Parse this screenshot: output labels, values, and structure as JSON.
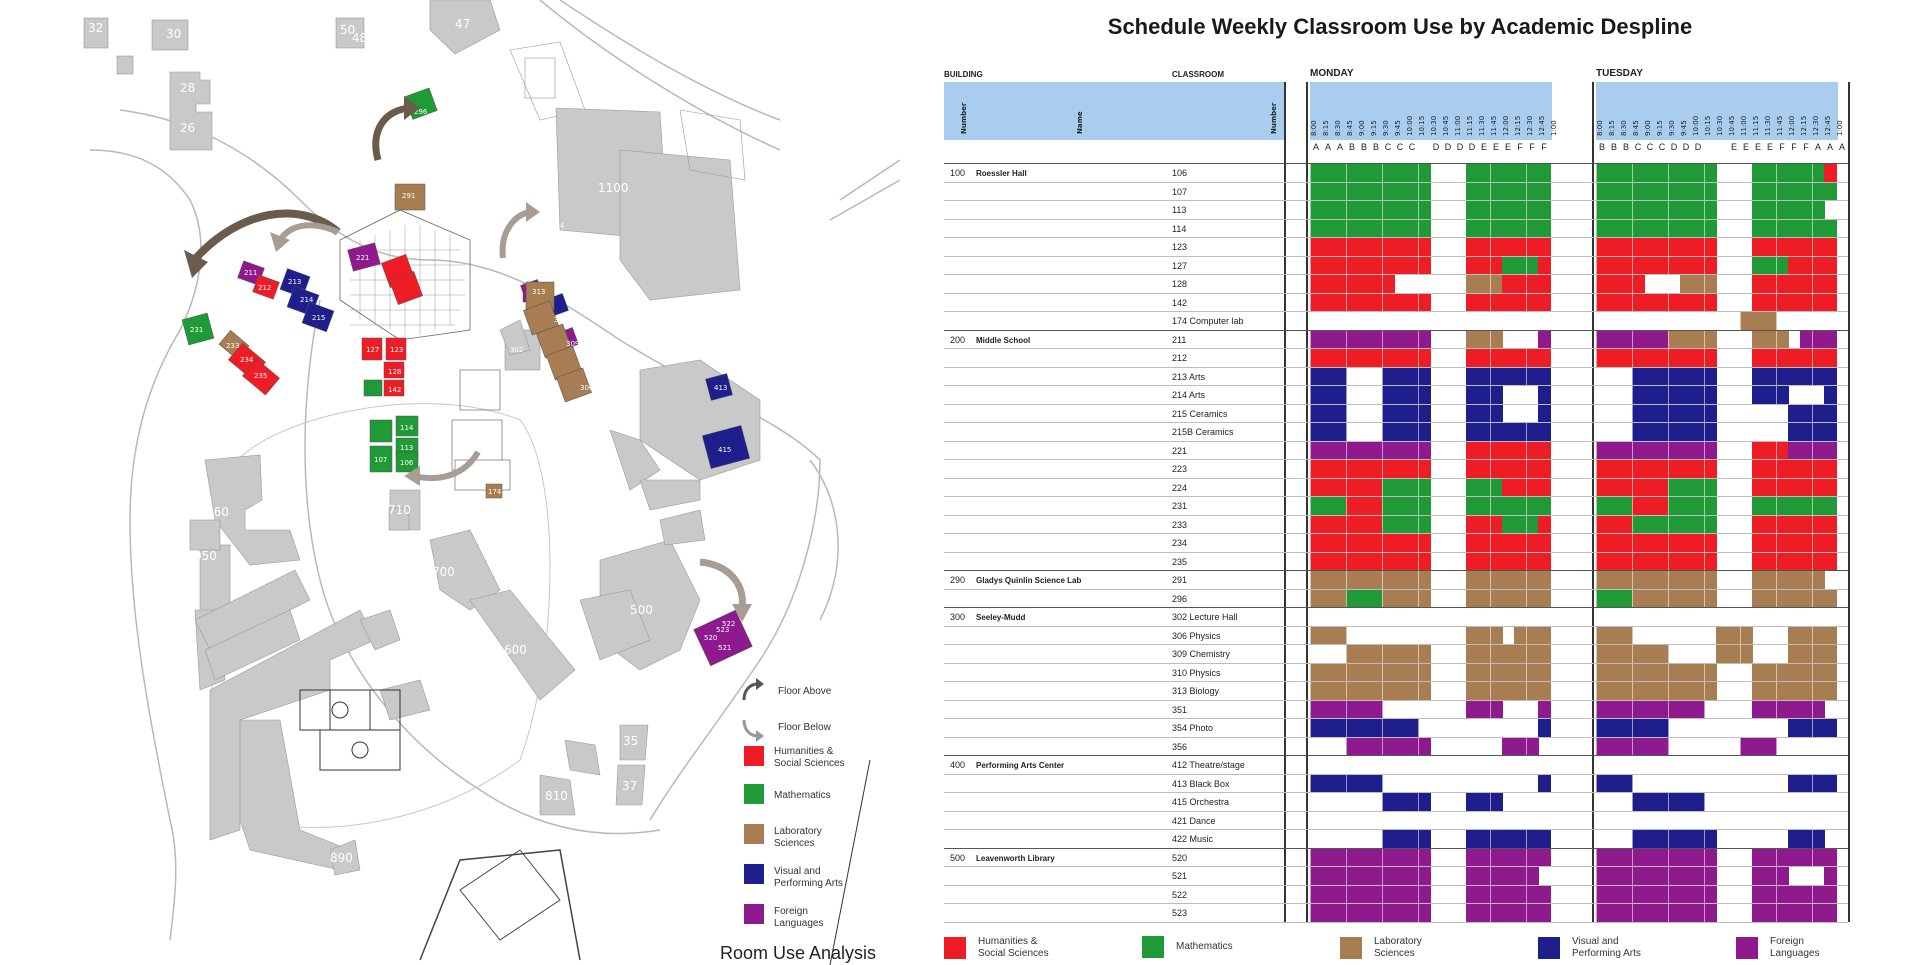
{
  "colors": {
    "H": "#ee1c25",
    "M": "#1f9a36",
    "L": "#a87d51",
    "V": "#1e1e8c",
    "F": "#8e1a8e",
    "header_band": "#a9cdee"
  },
  "map": {
    "caption": "Room Use Analysis",
    "buildings": [
      "32",
      "30",
      "28",
      "26",
      "50",
      "48",
      "47",
      "1100",
      "296",
      "291",
      "221",
      "211",
      "212",
      "213",
      "214",
      "215",
      "231",
      "233",
      "234",
      "235",
      "156",
      "154",
      "151",
      "313",
      "310",
      "309",
      "306",
      "302",
      "127",
      "123",
      "128",
      "142",
      "114",
      "113",
      "107",
      "106",
      "174",
      "413",
      "415",
      "700",
      "710",
      "960",
      "950",
      "500",
      "520",
      "523",
      "521",
      "522",
      "600",
      "890",
      "810",
      "35",
      "37"
    ],
    "legend": {
      "floor_above": "Floor Above",
      "floor_below": "Floor Below",
      "items": [
        {
          "key": "H",
          "label": "Humanities &\nSocial Sciences"
        },
        {
          "key": "M",
          "label": "Mathematics"
        },
        {
          "key": "L",
          "label": "Laboratory\nSciences"
        },
        {
          "key": "V",
          "label": "Visual and\nPerforming Arts"
        },
        {
          "key": "F",
          "label": "Foreign\nLanguages"
        }
      ]
    }
  },
  "schedule": {
    "title": "Schedule Weekly Classroom Use by Academic Despline",
    "header": {
      "building": "BUILDING",
      "classroom": "CLASSROOM",
      "number": "Number",
      "name": "Name",
      "cnumber": "Number"
    },
    "days": [
      {
        "name": "MONDAY",
        "blocks": [
          "A",
          "A",
          "A",
          "B",
          "B",
          "B",
          "C",
          "C",
          "C",
          "",
          "D",
          "D",
          "D",
          "D",
          "E",
          "E",
          "E",
          "F",
          "F",
          "F"
        ]
      },
      {
        "name": "TUESDAY",
        "blocks": [
          "B",
          "B",
          "B",
          "C",
          "C",
          "C",
          "D",
          "D",
          "D",
          "",
          "",
          "E",
          "E",
          "E",
          "E",
          "F",
          "F",
          "F",
          "A",
          "A",
          "A"
        ]
      }
    ],
    "times": [
      "8:00",
      "8:15",
      "8:30",
      "8:45",
      "9:00",
      "9:15",
      "9:30",
      "9:45",
      "10:00",
      "10:15",
      "10:30",
      "10:45",
      "11:00",
      "11:15",
      "11:30",
      "11:45",
      "12:00",
      "12:15",
      "12:30",
      "12:45",
      "1:00"
    ],
    "rows": [
      {
        "bnum": "100",
        "bname": "Roessler Hall",
        "room": "106",
        "mon": "MMMMMMMMMM...MMMMMMMHHH",
        "tue": "MMMMMMMMMM...MMMMMMHHH"
      },
      {
        "room": "107",
        "mon": "MMMMMMMMMM...MMMMMMMMMM",
        "tue": "MMMMMMMMMM...MMMMMMMMM"
      },
      {
        "room": "113",
        "mon": "MMMMMMMMMM...MMMMMMM...",
        "tue": "MMMMMMMMMM...MMMMMM...M"
      },
      {
        "room": "114",
        "mon": "MMMMMMMMMM...MMMMMMMMMM",
        "tue": "MMMMMMMMMM...MMMMMMMMM"
      },
      {
        "room": "123",
        "mon": "HHHHHHHHHH...HHHHHHHHHH",
        "tue": "HHHHHHHHHH...HHHHHHHHH"
      },
      {
        "room": "127",
        "mon": "HHHHHHHHHH...HHHMMMHHHH",
        "tue": "HHHHHHHHHH...MMMHHHHHH"
      },
      {
        "room": "128",
        "mon": "HHHHHHH......LLLHHHHHHH",
        "tue": "HHHH...LLL...HHHHHHHHH"
      },
      {
        "room": "142",
        "mon": "HHHHHHHHHH...HHHHHHHHHH",
        "tue": "HHHHHHHHHH...HHHHHHHHH"
      },
      {
        "room": "174 Computer lab",
        "mon": "........................",
        "tue": "............LLL........"
      },
      {
        "bnum": "200",
        "bname": "Middle School",
        "room": "211",
        "mon": "FFFFFFFFFF...LLL...FFF",
        "tue": "FFFFFFLLLL...LLL.FFFFFF"
      },
      {
        "room": "212",
        "mon": "HHHHHHHHHH...HHHHHHHHHH",
        "tue": "HHHHHHHHHH...HHHHHHHHH"
      },
      {
        "room": "213 Arts",
        "mon": "VVV...VVVV...VVVVVVVVVV",
        "tue": "...VVVVVVV...VVVVVVVVV"
      },
      {
        "room": "214 Arts",
        "mon": "VVV...VVVV...VVV...VVV",
        "tue": "...VVVVVVV...VVV...VVV"
      },
      {
        "room": "215 Ceramics",
        "mon": "VVV...VVVV...VVV...VVV",
        "tue": "...VVVVVVV......VVVVVV"
      },
      {
        "room": "215B Ceramics",
        "mon": "VVV...VVVV...VVVVVVVVVV",
        "tue": "...VVVVVVV......VVVVVV"
      },
      {
        "room": "221",
        "mon": "FFFFFFFFFF...HHHHHHHHHH",
        "tue": "FFFFFFFFFF...HHHFFFFFF"
      },
      {
        "room": "223",
        "mon": "HHHHHHHHHH...HHHHHHHHHH",
        "tue": "HHHHHHHHHH...HHHHHHHHH"
      },
      {
        "room": "224",
        "mon": "HHHHHHMMMM...MMMHHHHHHH",
        "tue": "HHHHHHMMMM...HHHHHHHHH"
      },
      {
        "room": "231",
        "mon": "MMMHHHMMMM...MMMMMMMMMM",
        "tue": "MMMHHHMMMM...MMMMMMMMM"
      },
      {
        "room": "233",
        "mon": "HHHHHHMMMM...HHHMMMHHHH",
        "tue": "HHHMMMMMMM...HHHHHHHHH"
      },
      {
        "room": "234",
        "mon": "HHHHHHHHHH...HHHHHHHHHH",
        "tue": "HHHHHHHHHH...HHHHHHHHH"
      },
      {
        "room": "235",
        "mon": "HHHHHHHHHH...HHHHHHHHHH",
        "tue": "HHHHHHHHHH...HHHHHHHHH"
      },
      {
        "bnum": "290",
        "bname": "Gladys Quinlin Science Lab",
        "room": "291",
        "mon": "LLLLLLLLLL...LLLLLLLLLL",
        "tue": "LLLLLLLLLL...LLLLLL..."
      },
      {
        "room": "296",
        "mon": "LLLMMMLLLL...LLLLLLLLLL",
        "tue": "MMMLLLLLLL...LLLLLLLLL"
      },
      {
        "bnum": "300",
        "bname": "Seeley-Mudd",
        "room": "302 Lecture Hall",
        "mon": "........................",
        "tue": "........................"
      },
      {
        "room": "306 Physics",
        "mon": "LLL..........LLL.LLLLLL",
        "tue": "LLL.......LLL...LLLLLLL"
      },
      {
        "room": "309 Chemistry",
        "mon": "...LLLLLLL...LLLLLLLLLL",
        "tue": "LLLLLL....LLL...LLLLLLL"
      },
      {
        "room": "310 Physics",
        "mon": "LLLLLLLLLL...LLLLLLLLLL",
        "tue": "LLLLLLLLLL...LLLLLLLLL"
      },
      {
        "room": "313 Biology",
        "mon": "LLLLLLLLLL...LLLLLLLLLL",
        "tue": "LLLLLLLLLL...LLLLLLLLL"
      },
      {
        "room": "351",
        "mon": "FFFFFF.......FFF...FFF",
        "tue": "FFFFFFFFF....FFFFFF..."
      },
      {
        "room": "354 Photo",
        "mon": "VVVVVVVVV..........VVV",
        "tue": "VVVVVV..........VVVVVV"
      },
      {
        "room": "356",
        "mon": "...FFFFFFF......FFF....",
        "tue": "FFFFFF......FFF........"
      },
      {
        "bnum": "400",
        "bname": "Performing Arts Center",
        "room": "412 Theatre/stage",
        "mon": "........................",
        "tue": "........................"
      },
      {
        "room": "413 Black Box",
        "mon": "VVVVVV.............VVV",
        "tue": "VVV.............VVVVVV"
      },
      {
        "room": "415 Orchestra",
        "mon": "......VVVV...VVV......",
        "tue": "...VVVVVV.............."
      },
      {
        "room": "421 Dance",
        "mon": "........................",
        "tue": "........................"
      },
      {
        "room": "422 Music",
        "mon": "......VVVV...VVVVVVVVVV",
        "tue": "...VVVVVVV......VVV...."
      },
      {
        "bnum": "500",
        "bname": "Leavenworth Library",
        "room": "520",
        "mon": "FFFFFFFFFF...FFFFFFFFFF",
        "tue": "FFFFFFFFFF...FFFFFFFFF"
      },
      {
        "room": "521",
        "mon": "FFFFFFFFFF...FFFFFF...F",
        "tue": "FFFFFFFFFF...FFF...FFF"
      },
      {
        "room": "522",
        "mon": "FFFFFFFFFF...FFFFFFFFFF",
        "tue": "FFFFFFFFFF...FFFFFFFFF"
      },
      {
        "room": "523",
        "mon": "FFFFFFFFFF...FFFFFFFFFF",
        "tue": "FFFFFFFFFF...FFFFFFFFF"
      }
    ],
    "legend": [
      {
        "key": "H",
        "label": "Humanities &\nSocial Sciences"
      },
      {
        "key": "M",
        "label": "Mathematics"
      },
      {
        "key": "L",
        "label": "Laboratory\nSciences"
      },
      {
        "key": "V",
        "label": "Visual and\nPerforming Arts"
      },
      {
        "key": "F",
        "label": "Foreign\nLanguages"
      }
    ]
  }
}
